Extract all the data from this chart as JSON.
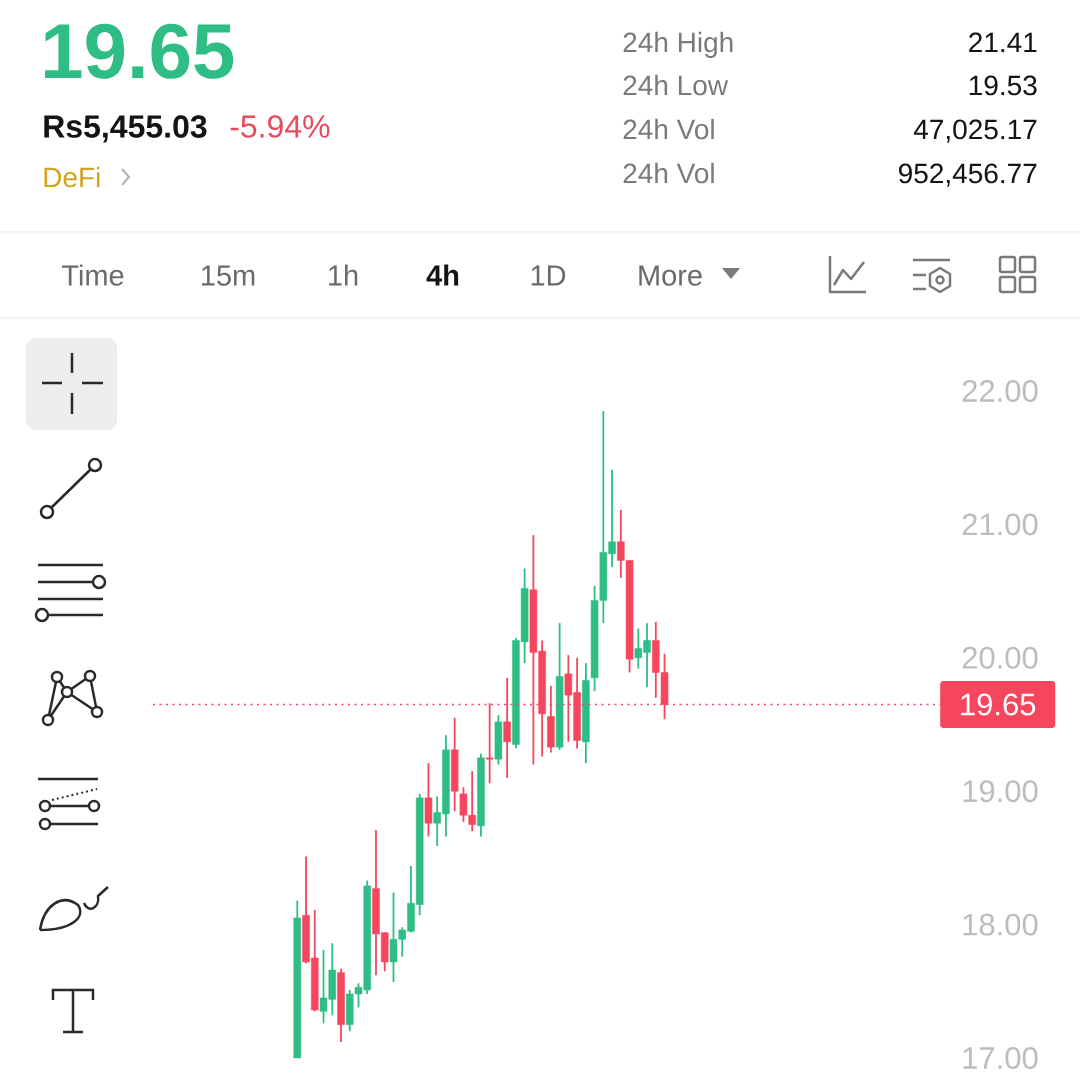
{
  "chart_data": {
    "type": "candlestick",
    "title": "19.65",
    "annotations": [
      "Rs5,455.03",
      "-5.94%",
      "DeFi",
      "24h High",
      "21.41",
      "24h Low",
      "19.53",
      "24h Vol",
      "47,025.17",
      "24h Vol",
      "952,456.77",
      "Time",
      "15m",
      "1h",
      "4h",
      "1D",
      "More"
    ],
    "categories": [
      null,
      null,
      null,
      null,
      null,
      null,
      null,
      null,
      null,
      null,
      null,
      null,
      null,
      null,
      null,
      null,
      null,
      null,
      null,
      null,
      null,
      null,
      null,
      null,
      null,
      null,
      null,
      null,
      null,
      null,
      null,
      null,
      null,
      null,
      null,
      null,
      null,
      null,
      null,
      null,
      null,
      null,
      null,
      null,
      null,
      null,
      null,
      null,
      null,
      null,
      null,
      null,
      null,
      null,
      null,
      null,
      null,
      null,
      null,
      null,
      null,
      null,
      null,
      null,
      null,
      null,
      null,
      null,
      null,
      null,
      null,
      null,
      null,
      null,
      null,
      null,
      null,
      null,
      null,
      null,
      null,
      null,
      null,
      null,
      null,
      null,
      null,
      null,
      null,
      null
    ],
    "ohlc": [
      null,
      null,
      null,
      null,
      null,
      null,
      null,
      null,
      null,
      null,
      null,
      null,
      null,
      null,
      null,
      null,
      [
        17.0,
        18.18,
        17.0,
        18.05
      ],
      [
        18.07,
        18.51,
        17.71,
        17.72
      ],
      [
        17.75,
        18.11,
        17.35,
        17.36
      ],
      [
        17.35,
        17.81,
        17.26,
        17.45
      ],
      [
        17.44,
        17.86,
        17.32,
        17.66
      ],
      [
        17.64,
        17.67,
        17.12,
        17.25
      ],
      [
        17.25,
        17.51,
        17.2,
        17.48
      ],
      [
        17.48,
        17.56,
        17.38,
        17.53
      ],
      [
        17.51,
        18.33,
        17.48,
        18.29
      ],
      [
        18.27,
        18.71,
        17.62,
        17.93
      ],
      [
        17.94,
        17.94,
        17.65,
        17.72
      ],
      [
        17.72,
        18.24,
        17.57,
        17.89
      ],
      [
        17.89,
        17.98,
        17.76,
        17.96
      ],
      [
        17.95,
        18.44,
        17.94,
        18.16
      ],
      [
        18.15,
        18.98,
        18.07,
        18.95
      ],
      [
        18.95,
        19.21,
        18.66,
        18.76
      ],
      [
        18.76,
        18.96,
        18.59,
        18.84
      ],
      [
        18.83,
        19.42,
        18.66,
        19.31
      ],
      [
        19.31,
        19.55,
        18.85,
        19.0
      ],
      [
        18.98,
        19.03,
        18.77,
        18.82
      ],
      [
        18.82,
        19.15,
        18.7,
        18.75
      ],
      [
        18.74,
        19.28,
        18.66,
        19.25
      ],
      [
        19.25,
        19.66,
        19.06,
        19.24
      ],
      [
        19.24,
        19.57,
        19.2,
        19.52
      ],
      [
        19.52,
        19.85,
        19.1,
        19.37
      ],
      [
        19.35,
        20.15,
        19.32,
        20.13
      ],
      [
        20.12,
        20.67,
        19.96,
        20.52
      ],
      [
        20.51,
        20.92,
        19.2,
        20.04
      ],
      [
        20.05,
        20.13,
        19.26,
        19.58
      ],
      [
        19.56,
        19.79,
        19.29,
        19.33
      ],
      [
        19.33,
        20.26,
        19.31,
        19.86
      ],
      [
        19.88,
        20.02,
        19.37,
        19.72
      ],
      [
        19.74,
        20.0,
        19.32,
        19.38
      ],
      [
        19.37,
        19.96,
        19.21,
        19.83
      ],
      [
        19.85,
        20.54,
        19.75,
        20.43
      ],
      [
        20.43,
        21.85,
        20.26,
        20.79
      ],
      [
        20.78,
        21.41,
        20.68,
        20.87
      ],
      [
        20.87,
        21.11,
        20.6,
        20.73
      ],
      [
        20.73,
        20.73,
        19.89,
        19.99
      ],
      [
        20.0,
        20.22,
        19.92,
        20.07
      ],
      [
        20.04,
        20.26,
        19.78,
        20.13
      ],
      [
        20.13,
        20.27,
        19.7,
        19.89
      ],
      [
        19.89,
        20.03,
        19.54,
        19.65
      ],
      null,
      null,
      null,
      null,
      null,
      null,
      null,
      null,
      null,
      null,
      null,
      null,
      null,
      null,
      null,
      null,
      null,
      null,
      null,
      null,
      null,
      null,
      null,
      null,
      null,
      null,
      null,
      null,
      null,
      null,
      null
    ],
    "colors": [
      null,
      null,
      null,
      null,
      null,
      null,
      null,
      null,
      null,
      null,
      null,
      null,
      null,
      null,
      null,
      null,
      "#2ebd85",
      "#f6465d",
      "#f6465d",
      "#2ebd85",
      "#2ebd85",
      "#f6465d",
      "#2ebd85",
      "#2ebd85",
      "#2ebd85",
      "#f6465d",
      "#f6465d",
      "#2ebd85",
      "#2ebd85",
      "#2ebd85",
      "#2ebd85",
      "#f6465d",
      "#2ebd85",
      "#2ebd85",
      "#f6465d",
      "#f6465d",
      "#f6465d",
      "#2ebd85",
      "#f6465d",
      "#2ebd85",
      "#f6465d",
      "#2ebd85",
      "#2ebd85",
      "#f6465d",
      "#f6465d",
      "#f6465d",
      "#2ebd85",
      "#f6465d",
      "#f6465d",
      "#2ebd85",
      "#2ebd85",
      "#2ebd85",
      "#2ebd85",
      "#f6465d",
      "#f6465d",
      "#2ebd85",
      "#2ebd85",
      "#f6465d",
      "#f6465d",
      null,
      null,
      null,
      null,
      null,
      null,
      null,
      null,
      null,
      null,
      null,
      null,
      null,
      null,
      null,
      null,
      null,
      null,
      null,
      null,
      null,
      null,
      null,
      null,
      null,
      null,
      null,
      null,
      null,
      null,
      null
    ],
    "ylim": [
      17,
      22
    ],
    "yticks": [
      {
        "value": 17,
        "label": "17.00"
      },
      {
        "value": 18,
        "label": "18.00"
      },
      {
        "value": 19,
        "label": "19.00"
      },
      {
        "value": 20,
        "label": "20.00"
      },
      {
        "value": 21,
        "label": "21.00"
      },
      {
        "value": 22,
        "label": "22.00"
      }
    ],
    "ref_lines": [
      {
        "axis": "y",
        "value": 19.65,
        "label": "19.65",
        "color": "#f6465d",
        "line_style": "dotted"
      }
    ]
  }
}
